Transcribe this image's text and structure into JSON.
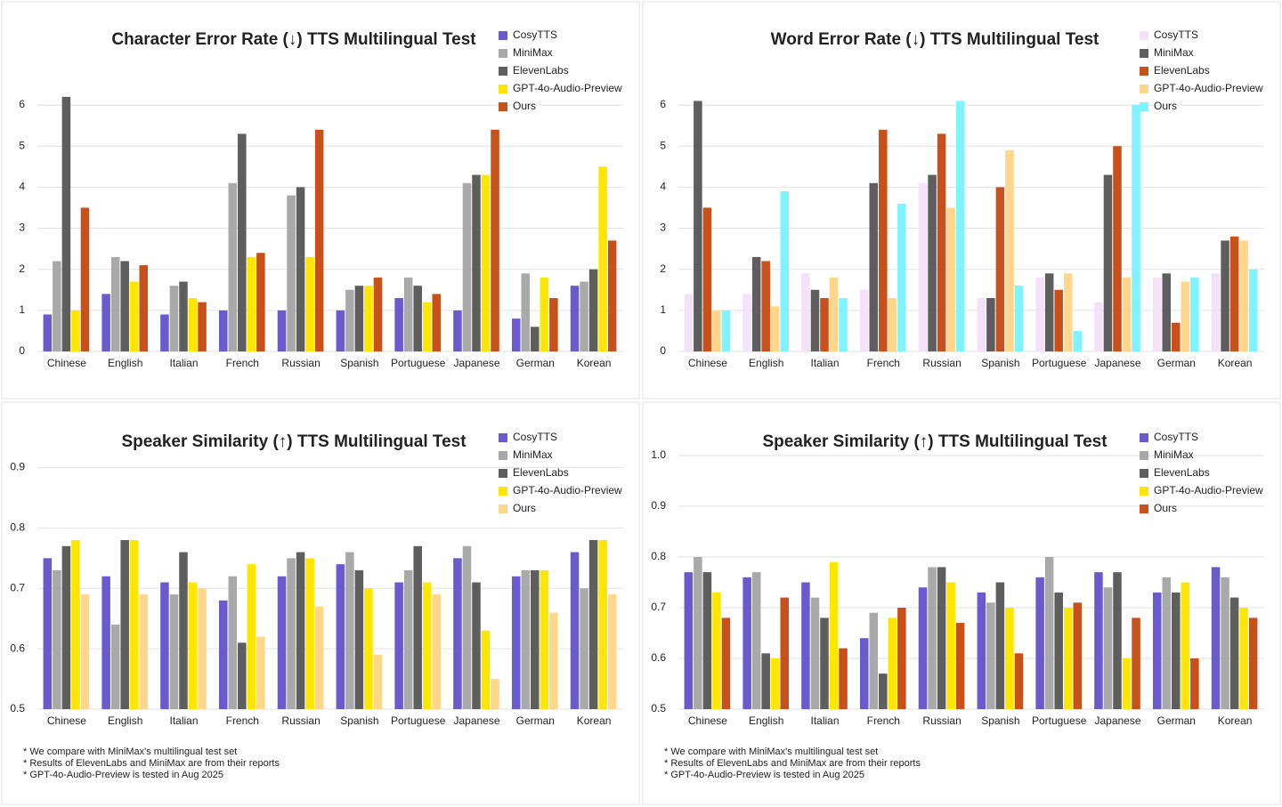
{
  "chart_data": [
    {
      "type": "bar",
      "title": "Character Error Rate (↓) TTS Multilingual Test",
      "categories": [
        "Chinese",
        "English",
        "Italian",
        "French",
        "Russian",
        "Spanish",
        "Portuguese",
        "Japanese",
        "German",
        "Korean"
      ],
      "series": [
        {
          "name": "CosyTTS",
          "color": "#6a5acd",
          "values": [
            0.9,
            1.4,
            0.9,
            1.0,
            1.0,
            1.0,
            1.3,
            1.0,
            0.8,
            1.6
          ]
        },
        {
          "name": "MiniMax",
          "color": "#a9a9a9",
          "values": [
            2.2,
            2.3,
            1.6,
            4.1,
            3.8,
            1.5,
            1.8,
            4.1,
            1.9,
            1.7
          ]
        },
        {
          "name": "ElevenLabs",
          "color": "#5e5e5e",
          "values": [
            6.2,
            2.2,
            1.7,
            5.3,
            4.0,
            1.6,
            1.6,
            4.3,
            0.6,
            2.0
          ]
        },
        {
          "name": "GPT-4o-Audio-Preview",
          "color": "#ffe600",
          "values": [
            1.0,
            1.7,
            1.3,
            2.3,
            2.3,
            1.6,
            1.2,
            4.3,
            1.8,
            4.5
          ]
        },
        {
          "name": "Ours",
          "color": "#c8501a",
          "values": [
            3.5,
            2.1,
            1.2,
            2.4,
            5.4,
            1.8,
            1.4,
            5.4,
            1.3,
            2.7
          ]
        }
      ],
      "ylim": [
        0,
        6.5
      ],
      "yticks": [
        0,
        1,
        2,
        3,
        4,
        5,
        6
      ],
      "grid": true,
      "legend": "top-right"
    },
    {
      "type": "bar",
      "title": "Word Error Rate (↓) TTS Multilingual Test",
      "categories": [
        "Chinese",
        "English",
        "Italian",
        "French",
        "Russian",
        "Spanish",
        "Portuguese",
        "Japanese",
        "German",
        "Korean"
      ],
      "series": [
        {
          "name": "CosyTTS",
          "color": "#f3e2fa",
          "values": [
            1.4,
            1.4,
            1.9,
            1.5,
            4.1,
            1.3,
            1.8,
            1.2,
            1.8,
            1.9
          ]
        },
        {
          "name": "MiniMax",
          "color": "#5e5e5e",
          "values": [
            6.1,
            2.3,
            1.5,
            4.1,
            4.3,
            1.3,
            1.9,
            4.3,
            1.9,
            2.7
          ]
        },
        {
          "name": "ElevenLabs",
          "color": "#c8501a",
          "values": [
            3.5,
            2.2,
            1.3,
            5.4,
            5.3,
            4.0,
            1.5,
            5.0,
            0.7,
            2.8
          ]
        },
        {
          "name": "GPT-4o-Audio-Preview",
          "color": "#ffd68a",
          "values": [
            1.0,
            1.1,
            1.8,
            1.3,
            3.5,
            4.9,
            1.9,
            1.8,
            1.7,
            2.7
          ]
        },
        {
          "name": "Ours",
          "color": "#7ff3ff",
          "values": [
            1.0,
            3.9,
            1.3,
            3.6,
            6.1,
            1.6,
            0.5,
            6.0,
            1.8,
            2.0
          ]
        }
      ],
      "ylim": [
        0,
        6.5
      ],
      "yticks": [
        0,
        1,
        2,
        3,
        4,
        5,
        6
      ],
      "grid": true,
      "legend": "top-right"
    },
    {
      "type": "bar",
      "title": "Speaker Similarity (↑) TTS Multilingual Test",
      "categories": [
        "Chinese",
        "English",
        "Italian",
        "French",
        "Russian",
        "Spanish",
        "Portuguese",
        "Japanese",
        "German",
        "Korean"
      ],
      "series": [
        {
          "name": "CosyTTS",
          "color": "#6a5acd",
          "values": [
            0.75,
            0.72,
            0.71,
            0.68,
            0.72,
            0.74,
            0.71,
            0.75,
            0.72,
            0.76
          ]
        },
        {
          "name": "MiniMax",
          "color": "#a9a9a9",
          "values": [
            0.73,
            0.64,
            0.69,
            0.72,
            0.75,
            0.76,
            0.73,
            0.77,
            0.73,
            0.7
          ]
        },
        {
          "name": "ElevenLabs",
          "color": "#5e5e5e",
          "values": [
            0.77,
            0.78,
            0.76,
            0.61,
            0.76,
            0.73,
            0.77,
            0.71,
            0.73,
            0.78
          ]
        },
        {
          "name": "GPT-4o-Audio-Preview",
          "color": "#ffe600",
          "values": [
            0.78,
            0.78,
            0.71,
            0.74,
            0.75,
            0.7,
            0.71,
            0.63,
            0.73,
            0.78
          ]
        },
        {
          "name": "Ours",
          "color": "#ffd68a",
          "values": [
            0.69,
            0.69,
            0.7,
            0.62,
            0.67,
            0.59,
            0.69,
            0.55,
            0.66,
            0.69
          ]
        }
      ],
      "ylim": [
        0.5,
        0.92
      ],
      "yticks": [
        0.5,
        0.6,
        0.7,
        0.8,
        0.9
      ],
      "grid": true,
      "legend": "top-right",
      "notes": [
        "* We compare with MiniMax's multilingual test set",
        "* Results of ElevenLabs and MiniMax are from their reports",
        "* GPT-4o-Audio-Preview is tested in Aug 2025"
      ]
    },
    {
      "type": "bar",
      "title": "Speaker Similarity (↑) TTS Multilingual Test",
      "categories": [
        "Chinese",
        "English",
        "Italian",
        "French",
        "Russian",
        "Spanish",
        "Portuguese",
        "Japanese",
        "German",
        "Korean"
      ],
      "series": [
        {
          "name": "CosyTTS",
          "color": "#6a5acd",
          "values": [
            0.77,
            0.76,
            0.75,
            0.64,
            0.74,
            0.73,
            0.76,
            0.77,
            0.73,
            0.78
          ]
        },
        {
          "name": "MiniMax",
          "color": "#a9a9a9",
          "values": [
            0.8,
            0.77,
            0.72,
            0.69,
            0.78,
            0.71,
            0.8,
            0.74,
            0.76,
            0.76
          ]
        },
        {
          "name": "ElevenLabs",
          "color": "#5e5e5e",
          "values": [
            0.77,
            0.61,
            0.68,
            0.57,
            0.78,
            0.75,
            0.73,
            0.77,
            0.73,
            0.72
          ]
        },
        {
          "name": "GPT-4o-Audio-Preview",
          "color": "#ffe600",
          "values": [
            0.73,
            0.6,
            0.79,
            0.68,
            0.75,
            0.7,
            0.7,
            0.6,
            0.75,
            0.7
          ]
        },
        {
          "name": "Ours",
          "color": "#c8501a",
          "values": [
            0.68,
            0.72,
            0.62,
            0.7,
            0.67,
            0.61,
            0.71,
            0.68,
            0.6,
            0.68
          ]
        }
      ],
      "ylim": [
        0.5,
        1.0
      ],
      "yticks": [
        0.5,
        0.6,
        0.7,
        0.8,
        0.9,
        {
          "value": 1,
          "label": "1.0"
        }
      ],
      "grid": true,
      "legend": "top-right",
      "notes": [
        "* We compare with MiniMax's multilingual test set",
        "* Results of ElevenLabs and MiniMax are from their reports",
        "* GPT-4o-Audio-Preview is tested in Aug 2025"
      ]
    }
  ]
}
